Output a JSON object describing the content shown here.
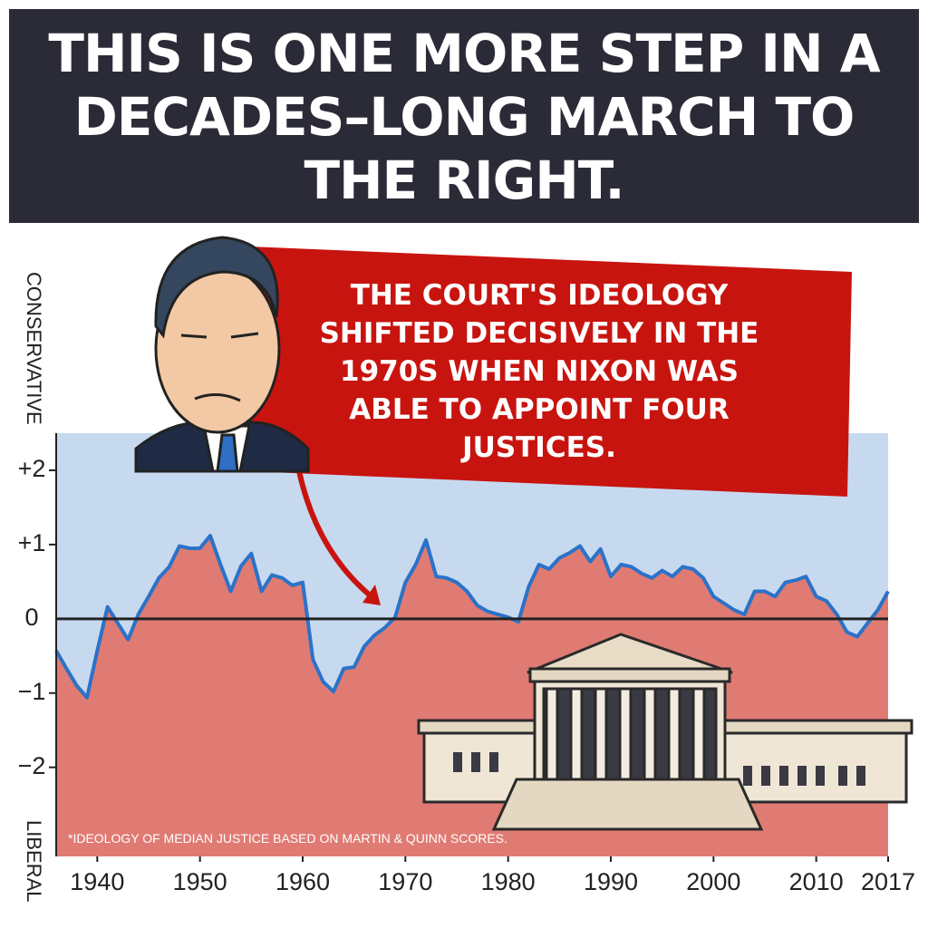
{
  "chart_data": {
    "type": "area",
    "title": "THIS IS ONE MORE STEP IN A DECADES–LONG MARCH TO THE RIGHT.",
    "annotation": "THE COURT'S IDEOLOGY SHIFTED DECISIVELY IN THE 1970S WHEN NIXON WAS ABLE TO APPOINT FOUR JUSTICES.",
    "y_label_top": "CONSERVATIVE",
    "y_label_bottom": "LIBERAL",
    "footnote": "*IDEOLOGY OF MEDIAN JUSTICE BASED ON MARTIN & QUINN SCORES.",
    "x": [
      1936,
      1937,
      1938,
      1939,
      1940,
      1941,
      1942,
      1943,
      1944,
      1945,
      1946,
      1947,
      1948,
      1949,
      1950,
      1951,
      1952,
      1953,
      1954,
      1955,
      1956,
      1957,
      1958,
      1959,
      1960,
      1961,
      1962,
      1963,
      1964,
      1965,
      1966,
      1967,
      1968,
      1969,
      1970,
      1971,
      1972,
      1973,
      1974,
      1975,
      1976,
      1977,
      1978,
      1979,
      1980,
      1981,
      1982,
      1983,
      1984,
      1985,
      1986,
      1987,
      1988,
      1989,
      1990,
      1991,
      1992,
      1993,
      1994,
      1995,
      1996,
      1997,
      1998,
      1999,
      2000,
      2001,
      2002,
      2003,
      2004,
      2005,
      2006,
      2007,
      2008,
      2009,
      2010,
      2011,
      2012,
      2013,
      2014,
      2015,
      2016,
      2017
    ],
    "values": [
      -0.43,
      -0.67,
      -0.9,
      -1.06,
      -0.43,
      0.16,
      -0.06,
      -0.28,
      0.06,
      0.3,
      0.55,
      0.7,
      0.98,
      0.95,
      0.95,
      1.12,
      0.73,
      0.37,
      0.71,
      0.88,
      0.37,
      0.59,
      0.55,
      0.45,
      0.49,
      -0.55,
      -0.85,
      -0.98,
      -0.67,
      -0.65,
      -0.37,
      -0.22,
      -0.12,
      0.02,
      0.49,
      0.73,
      1.06,
      0.57,
      0.55,
      0.49,
      0.37,
      0.18,
      0.1,
      0.06,
      0.02,
      -0.04,
      0.43,
      0.73,
      0.67,
      0.82,
      0.89,
      0.98,
      0.77,
      0.94,
      0.57,
      0.73,
      0.7,
      0.61,
      0.55,
      0.65,
      0.57,
      0.7,
      0.67,
      0.55,
      0.3,
      0.21,
      0.12,
      0.06,
      0.37,
      0.37,
      0.3,
      0.49,
      0.52,
      0.57,
      0.3,
      0.24,
      0.06,
      -0.18,
      -0.24,
      -0.06,
      0.12,
      0.37
    ],
    "line_color": "#2b72c8",
    "below_color": "#e07b73",
    "above_color": "#c7d9ef",
    "xlim": [
      1936,
      2017
    ],
    "ylim": [
      -3.2,
      2.5
    ],
    "xticks": [
      1940,
      1950,
      1960,
      1970,
      1980,
      1990,
      2000,
      2010,
      2017
    ],
    "yticks": [
      {
        "value": 2,
        "label": "+2"
      },
      {
        "value": 1,
        "label": "+1"
      },
      0,
      {
        "value": -1,
        "label": "−1"
      },
      {
        "value": -2,
        "label": "−2"
      }
    ]
  }
}
